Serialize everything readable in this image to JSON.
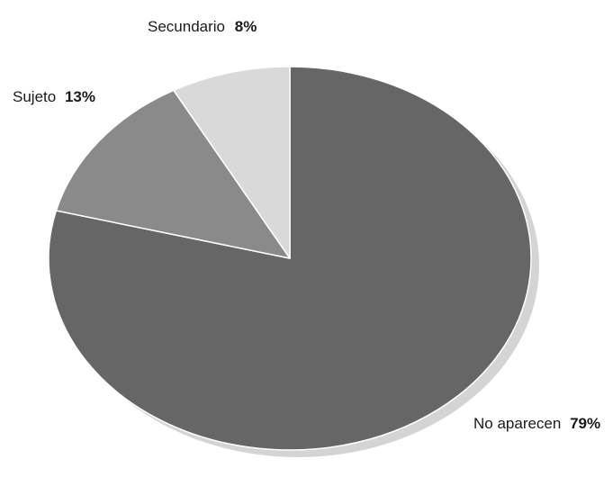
{
  "chart_data": {
    "type": "pie",
    "title": "",
    "slices": [
      {
        "label": "No aparecen",
        "value": 79,
        "value_label": "79%",
        "color": "#666666"
      },
      {
        "label": "Sujeto",
        "value": 13,
        "value_label": "13%",
        "color": "#8a8a8a"
      },
      {
        "label": "Secundario",
        "value": 8,
        "value_label": "8%",
        "color": "#d9d9d9"
      }
    ],
    "start_angle_deg": 0,
    "direction": "clockwise",
    "shadow": true,
    "shadow_color": "#d4d4d4",
    "slice_border_color": "#ffffff"
  }
}
